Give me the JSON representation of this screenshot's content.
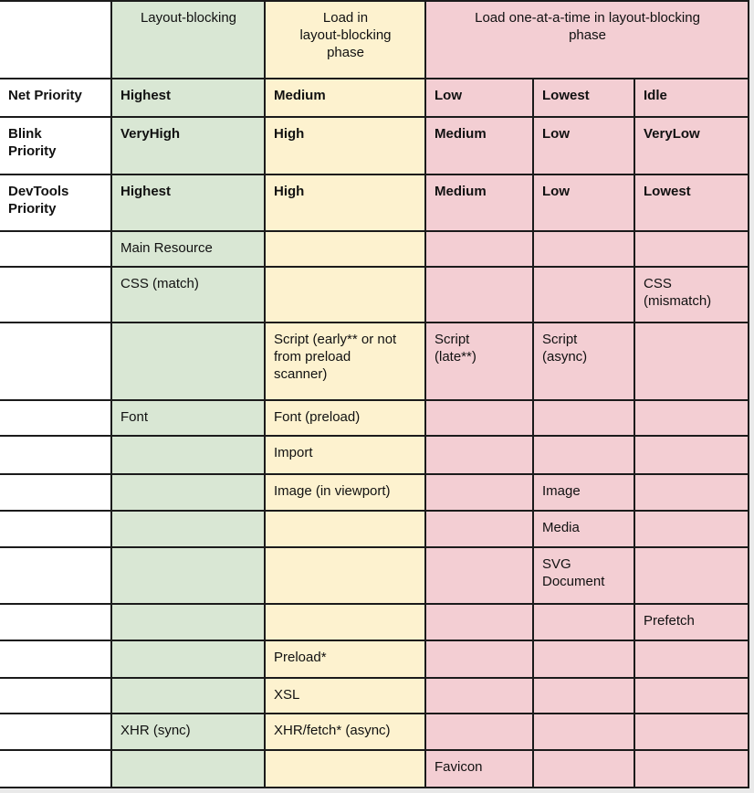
{
  "colors": {
    "column_layout_blocking": "#d9e7d4",
    "column_load_in_layout_blocking": "#fdf2cf",
    "column_load_one_at_a_time": "#f3ced3",
    "row_label_background": "#ffffff",
    "border": "#1b1b1b",
    "text": "#111111",
    "page_gutter": "#e9e9e9"
  },
  "table": {
    "rows": [
      {
        "name": "header",
        "header": true,
        "cells": [
          {
            "c": "label",
            "text": ""
          },
          {
            "c": "green",
            "text": "Layout-blocking"
          },
          {
            "c": "yellow",
            "text": "Load in\nlayout-blocking\nphase"
          },
          {
            "c": "pink",
            "span": 3,
            "text": "Load one-at-a-time in layout-blocking\nphase"
          }
        ]
      },
      {
        "name": "net-priority",
        "bold": true,
        "cells": [
          {
            "c": "label",
            "text": "Net Priority"
          },
          {
            "c": "green",
            "text": "Highest"
          },
          {
            "c": "yellow",
            "text": "Medium"
          },
          {
            "c": "pink",
            "text": "Low"
          },
          {
            "c": "pink",
            "text": "Lowest"
          },
          {
            "c": "pink",
            "text": "Idle"
          }
        ]
      },
      {
        "name": "blink-priority",
        "bold": true,
        "cells": [
          {
            "c": "label",
            "text": "Blink\nPriority"
          },
          {
            "c": "green",
            "text": "VeryHigh"
          },
          {
            "c": "yellow",
            "text": "High"
          },
          {
            "c": "pink",
            "text": "Medium"
          },
          {
            "c": "pink",
            "text": "Low"
          },
          {
            "c": "pink",
            "text": "VeryLow"
          }
        ]
      },
      {
        "name": "devtools-priority",
        "bold": true,
        "cells": [
          {
            "c": "label",
            "text": "DevTools\nPriority"
          },
          {
            "c": "green",
            "text": "Highest"
          },
          {
            "c": "yellow",
            "text": "High"
          },
          {
            "c": "pink",
            "text": "Medium"
          },
          {
            "c": "pink",
            "text": "Low"
          },
          {
            "c": "pink",
            "text": "Lowest"
          }
        ]
      },
      {
        "name": "main-resource",
        "cells": [
          {
            "c": "label",
            "text": ""
          },
          {
            "c": "green",
            "text": "Main Resource"
          },
          {
            "c": "yellow",
            "text": ""
          },
          {
            "c": "pink",
            "text": ""
          },
          {
            "c": "pink",
            "text": ""
          },
          {
            "c": "pink",
            "text": ""
          }
        ]
      },
      {
        "name": "css",
        "cells": [
          {
            "c": "label",
            "text": ""
          },
          {
            "c": "green",
            "text": "CSS (match)"
          },
          {
            "c": "yellow",
            "text": ""
          },
          {
            "c": "pink",
            "text": ""
          },
          {
            "c": "pink",
            "text": ""
          },
          {
            "c": "pink",
            "text": "CSS\n(mismatch)"
          }
        ]
      },
      {
        "name": "script",
        "cells": [
          {
            "c": "label",
            "text": ""
          },
          {
            "c": "green",
            "text": ""
          },
          {
            "c": "yellow",
            "text": "Script (early** or not\nfrom preload\nscanner)"
          },
          {
            "c": "pink",
            "text": "Script\n(late**)"
          },
          {
            "c": "pink",
            "text": "Script\n(async)"
          },
          {
            "c": "pink",
            "text": ""
          }
        ]
      },
      {
        "name": "font",
        "cells": [
          {
            "c": "label",
            "text": ""
          },
          {
            "c": "green",
            "text": "Font"
          },
          {
            "c": "yellow",
            "text": "Font (preload)"
          },
          {
            "c": "pink",
            "text": ""
          },
          {
            "c": "pink",
            "text": ""
          },
          {
            "c": "pink",
            "text": ""
          }
        ]
      },
      {
        "name": "import",
        "cells": [
          {
            "c": "label",
            "text": ""
          },
          {
            "c": "green",
            "text": ""
          },
          {
            "c": "yellow",
            "text": "Import"
          },
          {
            "c": "pink",
            "text": ""
          },
          {
            "c": "pink",
            "text": ""
          },
          {
            "c": "pink",
            "text": ""
          }
        ]
      },
      {
        "name": "image",
        "cells": [
          {
            "c": "label",
            "text": ""
          },
          {
            "c": "green",
            "text": ""
          },
          {
            "c": "yellow",
            "text": "Image (in viewport)"
          },
          {
            "c": "pink",
            "text": ""
          },
          {
            "c": "pink",
            "text": "Image"
          },
          {
            "c": "pink",
            "text": ""
          }
        ]
      },
      {
        "name": "media",
        "cells": [
          {
            "c": "label",
            "text": ""
          },
          {
            "c": "green",
            "text": ""
          },
          {
            "c": "yellow",
            "text": ""
          },
          {
            "c": "pink",
            "text": ""
          },
          {
            "c": "pink",
            "text": "Media"
          },
          {
            "c": "pink",
            "text": ""
          }
        ]
      },
      {
        "name": "svg-document",
        "cells": [
          {
            "c": "label",
            "text": ""
          },
          {
            "c": "green",
            "text": ""
          },
          {
            "c": "yellow",
            "text": ""
          },
          {
            "c": "pink",
            "text": ""
          },
          {
            "c": "pink",
            "text": "SVG\nDocument"
          },
          {
            "c": "pink",
            "text": ""
          }
        ]
      },
      {
        "name": "prefetch",
        "cells": [
          {
            "c": "label",
            "text": ""
          },
          {
            "c": "green",
            "text": ""
          },
          {
            "c": "yellow",
            "text": ""
          },
          {
            "c": "pink",
            "text": ""
          },
          {
            "c": "pink",
            "text": ""
          },
          {
            "c": "pink",
            "text": "Prefetch"
          }
        ]
      },
      {
        "name": "preload",
        "cells": [
          {
            "c": "label",
            "text": ""
          },
          {
            "c": "green",
            "text": ""
          },
          {
            "c": "yellow",
            "text": "Preload*"
          },
          {
            "c": "pink",
            "text": ""
          },
          {
            "c": "pink",
            "text": ""
          },
          {
            "c": "pink",
            "text": ""
          }
        ]
      },
      {
        "name": "xsl",
        "cells": [
          {
            "c": "label",
            "text": ""
          },
          {
            "c": "green",
            "text": ""
          },
          {
            "c": "yellow",
            "text": "XSL"
          },
          {
            "c": "pink",
            "text": ""
          },
          {
            "c": "pink",
            "text": ""
          },
          {
            "c": "pink",
            "text": ""
          }
        ]
      },
      {
        "name": "xhr",
        "cells": [
          {
            "c": "label",
            "text": ""
          },
          {
            "c": "green",
            "text": "XHR (sync)"
          },
          {
            "c": "yellow",
            "text": "XHR/fetch* (async)"
          },
          {
            "c": "pink",
            "text": ""
          },
          {
            "c": "pink",
            "text": ""
          },
          {
            "c": "pink",
            "text": ""
          }
        ]
      },
      {
        "name": "favicon",
        "cells": [
          {
            "c": "label",
            "text": ""
          },
          {
            "c": "green",
            "text": ""
          },
          {
            "c": "yellow",
            "text": ""
          },
          {
            "c": "pink",
            "text": "Favicon"
          },
          {
            "c": "pink",
            "text": ""
          },
          {
            "c": "pink",
            "text": ""
          }
        ]
      }
    ]
  }
}
